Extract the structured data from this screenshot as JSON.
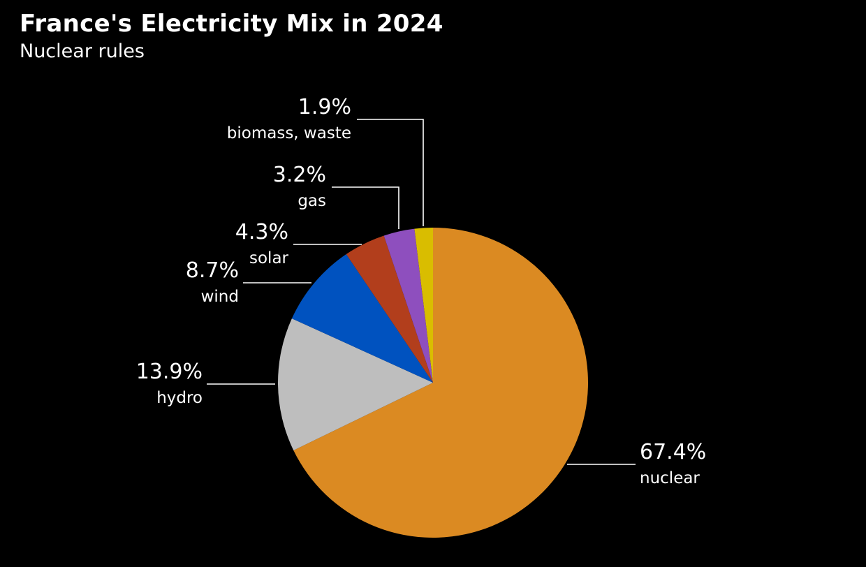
{
  "chart_data": {
    "type": "pie",
    "title": "France's Electricity Mix in 2024",
    "subtitle": "Nuclear rules",
    "start_angle_deg": 0,
    "direction": "clockwise",
    "slices": [
      {
        "key": "nuclear",
        "label": "nuclear",
        "value": 67.4,
        "value_label": "67.4%",
        "color": "#DB8A22"
      },
      {
        "key": "hydro",
        "label": "hydro",
        "value": 13.9,
        "value_label": "13.9%",
        "color": "#BEBEBE"
      },
      {
        "key": "wind",
        "label": "wind",
        "value": 8.7,
        "value_label": "8.7%",
        "color": "#0052BF"
      },
      {
        "key": "solar",
        "label": "solar",
        "value": 4.3,
        "value_label": "4.3%",
        "color": "#B23E1C"
      },
      {
        "key": "gas",
        "label": "gas",
        "value": 3.2,
        "value_label": "3.2%",
        "color": "#8E4FBE"
      },
      {
        "key": "biomass",
        "label": "biomass, waste",
        "value": 1.9,
        "value_label": "1.9%",
        "color": "#D9BD00"
      }
    ]
  }
}
